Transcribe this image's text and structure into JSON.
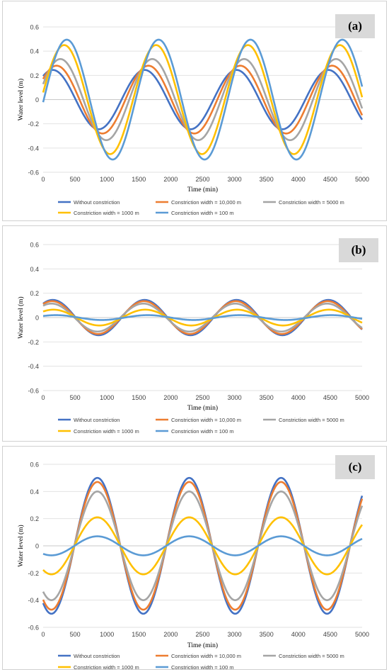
{
  "panels": [
    {
      "label": "(a)",
      "chart_data": {
        "type": "line",
        "xlabel": "Time (min)",
        "ylabel": "Water level (m)",
        "xlim": [
          0,
          5000
        ],
        "ylim": [
          -0.6,
          0.6
        ],
        "xticks": [
          0,
          500,
          1000,
          1500,
          2000,
          2500,
          3000,
          3500,
          4000,
          4500,
          5000
        ],
        "yticks": [
          0.6,
          0.4,
          0.2,
          0,
          -0.2,
          -0.4,
          -0.6
        ],
        "grid": "horizontal",
        "legend": "bottom",
        "period": 1440,
        "series": [
          {
            "name": "Without constriction",
            "color": "#4472c4",
            "amplitude": 0.245,
            "peak_time": 150
          },
          {
            "name": "Constriction width = 10,000 m",
            "color": "#ed7d31",
            "amplitude": 0.28,
            "peak_time": 210
          },
          {
            "name": "Constriction width = 5000 m",
            "color": "#a5a5a5",
            "amplitude": 0.335,
            "peak_time": 270
          },
          {
            "name": "Constriction width = 1000 m",
            "color": "#ffc000",
            "amplitude": 0.45,
            "peak_time": 330
          },
          {
            "name": "Constriction width = 100 m",
            "color": "#5b9bd5",
            "amplitude": 0.495,
            "peak_time": 370
          }
        ]
      }
    },
    {
      "label": "(b)",
      "chart_data": {
        "type": "line",
        "xlabel": "Time (min)",
        "ylabel": "Water level (m)",
        "xlim": [
          0,
          5000
        ],
        "ylim": [
          -0.6,
          0.6
        ],
        "xticks": [
          0,
          500,
          1000,
          1500,
          2000,
          2500,
          3000,
          3500,
          4000,
          4500,
          5000
        ],
        "yticks": [
          0.6,
          0.4,
          0.2,
          0,
          -0.2,
          -0.4,
          -0.6
        ],
        "grid": "horizontal",
        "legend": "bottom",
        "period": 1440,
        "series": [
          {
            "name": "Without constriction",
            "color": "#4472c4",
            "amplitude": 0.145,
            "peak_time": 150
          },
          {
            "name": "Constriction width = 10,000 m",
            "color": "#ed7d31",
            "amplitude": 0.135,
            "peak_time": 140
          },
          {
            "name": "Constriction width = 5000 m",
            "color": "#a5a5a5",
            "amplitude": 0.115,
            "peak_time": 130
          },
          {
            "name": "Constriction width = 1000 m",
            "color": "#ffc000",
            "amplitude": 0.065,
            "peak_time": 160
          },
          {
            "name": "Constriction width = 100 m",
            "color": "#5b9bd5",
            "amplitude": 0.02,
            "peak_time": 200
          }
        ]
      }
    },
    {
      "label": "(c)",
      "chart_data": {
        "type": "line",
        "xlabel": "Time (min)",
        "ylabel": "Water level (m)",
        "xlim": [
          0,
          5000
        ],
        "ylim": [
          -0.6,
          0.6
        ],
        "xticks": [
          0,
          500,
          1000,
          1500,
          2000,
          2500,
          3000,
          3500,
          4000,
          4500,
          5000
        ],
        "yticks": [
          0.6,
          0.4,
          0.2,
          0,
          -0.2,
          -0.4,
          -0.6
        ],
        "grid": "horizontal",
        "legend": "bottom",
        "period": 1440,
        "series": [
          {
            "name": "Without constriction",
            "color": "#4472c4",
            "amplitude": 0.5,
            "peak_time": 850
          },
          {
            "name": "Constriction width = 10,000 m",
            "color": "#ed7d31",
            "amplitude": 0.47,
            "peak_time": 850
          },
          {
            "name": "Constriction width = 5000 m",
            "color": "#a5a5a5",
            "amplitude": 0.4,
            "peak_time": 850
          },
          {
            "name": "Constriction width = 1000 m",
            "color": "#ffc000",
            "amplitude": 0.21,
            "peak_time": 850
          },
          {
            "name": "Constriction width = 100 m",
            "color": "#5b9bd5",
            "amplitude": 0.07,
            "peak_time": 850
          }
        ]
      }
    }
  ]
}
